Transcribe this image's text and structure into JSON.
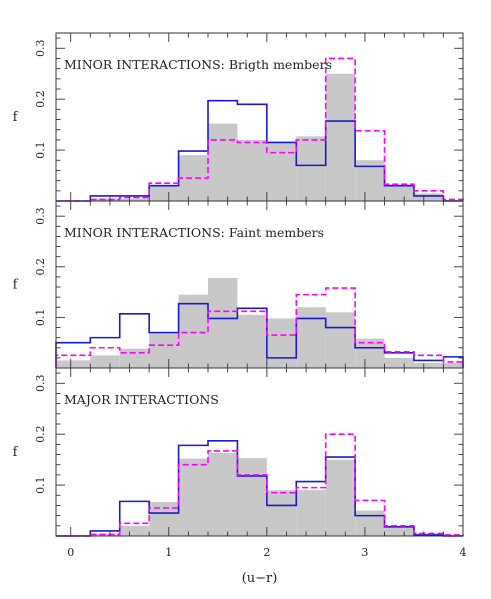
{
  "chart_data": [
    {
      "type": "histogram",
      "panel_label": "MINOR INTERACTIONS: Brigth members",
      "ylabel": "f",
      "xlim": [
        -0.15,
        4.0
      ],
      "ylim": [
        0,
        0.33
      ],
      "yticks": [
        0.1,
        0.2,
        0.3
      ],
      "bin_edges": [
        -0.15,
        0.2,
        0.5,
        0.8,
        1.1,
        1.4,
        1.7,
        2.0,
        2.3,
        2.6,
        2.9,
        3.2,
        3.5,
        3.8,
        4.0
      ],
      "series": [
        {
          "style": "filled-gray",
          "color": "#c8c8c8",
          "values": [
            0.0,
            0.005,
            0.005,
            0.03,
            0.09,
            0.152,
            0.12,
            0.115,
            0.127,
            0.25,
            0.08,
            0.03,
            0.015,
            0.002
          ]
        },
        {
          "style": "solid",
          "color": "#1a1acc",
          "values": [
            0.0,
            0.01,
            0.01,
            0.03,
            0.098,
            0.197,
            0.19,
            0.115,
            0.07,
            0.157,
            0.068,
            0.03,
            0.01,
            0.0
          ]
        },
        {
          "style": "dashed",
          "color": "#ff00ff",
          "values": [
            0.0,
            0.003,
            0.007,
            0.035,
            0.045,
            0.12,
            0.115,
            0.095,
            0.12,
            0.28,
            0.138,
            0.033,
            0.02,
            0.003
          ]
        }
      ]
    },
    {
      "type": "histogram",
      "panel_label": "MINOR INTERACTIONS: Faint members",
      "ylabel": "f",
      "xlim": [
        -0.15,
        4.0
      ],
      "ylim": [
        0,
        0.33
      ],
      "yticks": [
        0.1,
        0.2,
        0.3
      ],
      "bin_edges": [
        -0.15,
        0.2,
        0.5,
        0.8,
        1.1,
        1.4,
        1.7,
        2.0,
        2.3,
        2.6,
        2.9,
        3.2,
        3.5,
        3.8,
        4.0
      ],
      "series": [
        {
          "style": "filled-gray",
          "color": "#c8c8c8",
          "values": [
            0.015,
            0.025,
            0.038,
            0.068,
            0.145,
            0.178,
            0.105,
            0.098,
            0.12,
            0.11,
            0.058,
            0.02,
            0.01,
            0.01
          ]
        },
        {
          "style": "solid",
          "color": "#1a1acc",
          "values": [
            0.05,
            0.06,
            0.107,
            0.07,
            0.127,
            0.098,
            0.118,
            0.02,
            0.098,
            0.08,
            0.04,
            0.03,
            0.015,
            0.022
          ]
        },
        {
          "style": "dashed",
          "color": "#ff00ff",
          "values": [
            0.025,
            0.04,
            0.03,
            0.045,
            0.07,
            0.112,
            0.112,
            0.065,
            0.145,
            0.158,
            0.05,
            0.032,
            0.025,
            0.012
          ]
        }
      ]
    },
    {
      "type": "histogram",
      "panel_label": "MAJOR INTERACTIONS",
      "xlabel": "(u−r)",
      "ylabel": "f",
      "xlim": [
        -0.15,
        4.0
      ],
      "ylim": [
        0,
        0.33
      ],
      "yticks": [
        0.1,
        0.2,
        0.3
      ],
      "xticks": [
        "0",
        "1",
        "2",
        "3",
        "4"
      ],
      "bin_edges": [
        -0.15,
        0.2,
        0.5,
        0.8,
        1.1,
        1.4,
        1.7,
        2.0,
        2.3,
        2.6,
        2.9,
        3.2,
        3.5,
        3.8,
        4.0
      ],
      "series": [
        {
          "style": "filled-gray",
          "color": "#c8c8c8",
          "values": [
            0.002,
            0.005,
            0.02,
            0.067,
            0.152,
            0.163,
            0.153,
            0.09,
            0.09,
            0.15,
            0.05,
            0.018,
            0.005,
            0.002
          ]
        },
        {
          "style": "solid",
          "color": "#1a1acc",
          "values": [
            0.0,
            0.01,
            0.068,
            0.045,
            0.178,
            0.187,
            0.118,
            0.06,
            0.107,
            0.155,
            0.04,
            0.018,
            0.002,
            0.0
          ]
        },
        {
          "style": "dashed",
          "color": "#ff00ff",
          "values": [
            0.0,
            0.003,
            0.025,
            0.055,
            0.14,
            0.167,
            0.12,
            0.085,
            0.095,
            0.2,
            0.07,
            0.02,
            0.005,
            0.002
          ]
        }
      ]
    }
  ]
}
